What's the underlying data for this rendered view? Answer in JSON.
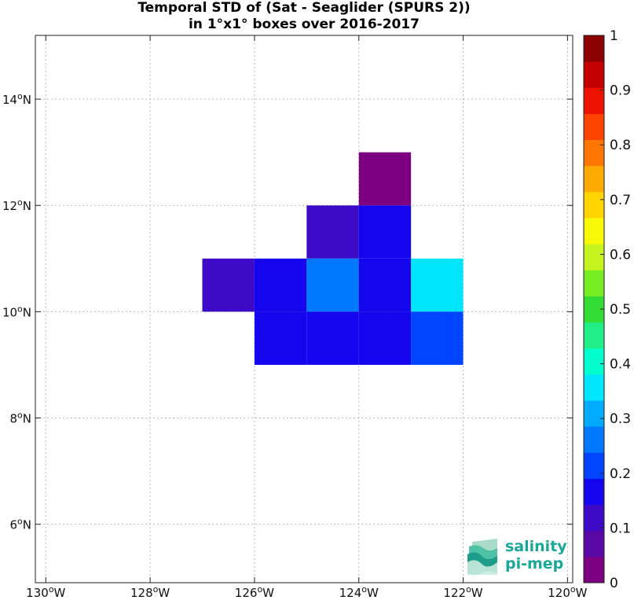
{
  "chart_data": {
    "type": "heatmap",
    "title": [
      "Temporal STD of (Sat - Seaglider (SPURS 2))",
      "in 1°x1° boxes over 2016-2017"
    ],
    "xlim": [
      -130.2,
      -119.9
    ],
    "ylim": [
      4.9,
      15.2
    ],
    "x_ticks": [
      {
        "value": -130,
        "label": "130",
        "sup": "o",
        "hemi": "W"
      },
      {
        "value": -128,
        "label": "128",
        "sup": "o",
        "hemi": "W"
      },
      {
        "value": -126,
        "label": "126",
        "sup": "o",
        "hemi": "W"
      },
      {
        "value": -124,
        "label": "124",
        "sup": "o",
        "hemi": "W"
      },
      {
        "value": -122,
        "label": "122",
        "sup": "o",
        "hemi": "W"
      },
      {
        "value": -120,
        "label": "120",
        "sup": "o",
        "hemi": "W"
      }
    ],
    "y_ticks": [
      {
        "value": 6,
        "label": "6",
        "sup": "o",
        "hemi": "N"
      },
      {
        "value": 8,
        "label": "8",
        "sup": "o",
        "hemi": "N"
      },
      {
        "value": 10,
        "label": "10",
        "sup": "o",
        "hemi": "N"
      },
      {
        "value": 12,
        "label": "12",
        "sup": "o",
        "hemi": "N"
      },
      {
        "value": 14,
        "label": "14",
        "sup": "o",
        "hemi": "N"
      }
    ],
    "grid": true,
    "cells": [
      {
        "lon": -124,
        "lat": 12,
        "value": 0.02
      },
      {
        "lon": -125,
        "lat": 11,
        "value": 0.12
      },
      {
        "lon": -124,
        "lat": 11,
        "value": 0.18
      },
      {
        "lon": -127,
        "lat": 10,
        "value": 0.12
      },
      {
        "lon": -126,
        "lat": 10,
        "value": 0.18
      },
      {
        "lon": -125,
        "lat": 10,
        "value": 0.28
      },
      {
        "lon": -124,
        "lat": 10,
        "value": 0.18
      },
      {
        "lon": -123,
        "lat": 10,
        "value": 0.38
      },
      {
        "lon": -126,
        "lat": 9,
        "value": 0.18
      },
      {
        "lon": -125,
        "lat": 9,
        "value": 0.18
      },
      {
        "lon": -124,
        "lat": 9,
        "value": 0.18
      },
      {
        "lon": -123,
        "lat": 9,
        "value": 0.22
      }
    ],
    "colorbar": {
      "range": [
        0,
        1
      ],
      "tick_labels": [
        "0",
        "0.1",
        "0.2",
        "0.3",
        "0.4",
        "0.5",
        "0.6",
        "0.7",
        "0.8",
        "0.9",
        "1"
      ],
      "colors": [
        "#7d0083",
        "#5a08a5",
        "#3d0ac8",
        "#1405ee",
        "#0044ff",
        "#0077ff",
        "#00aaff",
        "#00e6ff",
        "#00ffcc",
        "#22ee88",
        "#33dd33",
        "#77ee22",
        "#c6f41e",
        "#f8f809",
        "#ffd400",
        "#ffaa00",
        "#ff7700",
        "#ff4400",
        "#ee1100",
        "#c40000",
        "#8b0000"
      ]
    }
  },
  "logo": {
    "line1": "salinity",
    "line2": "pi-mep"
  }
}
